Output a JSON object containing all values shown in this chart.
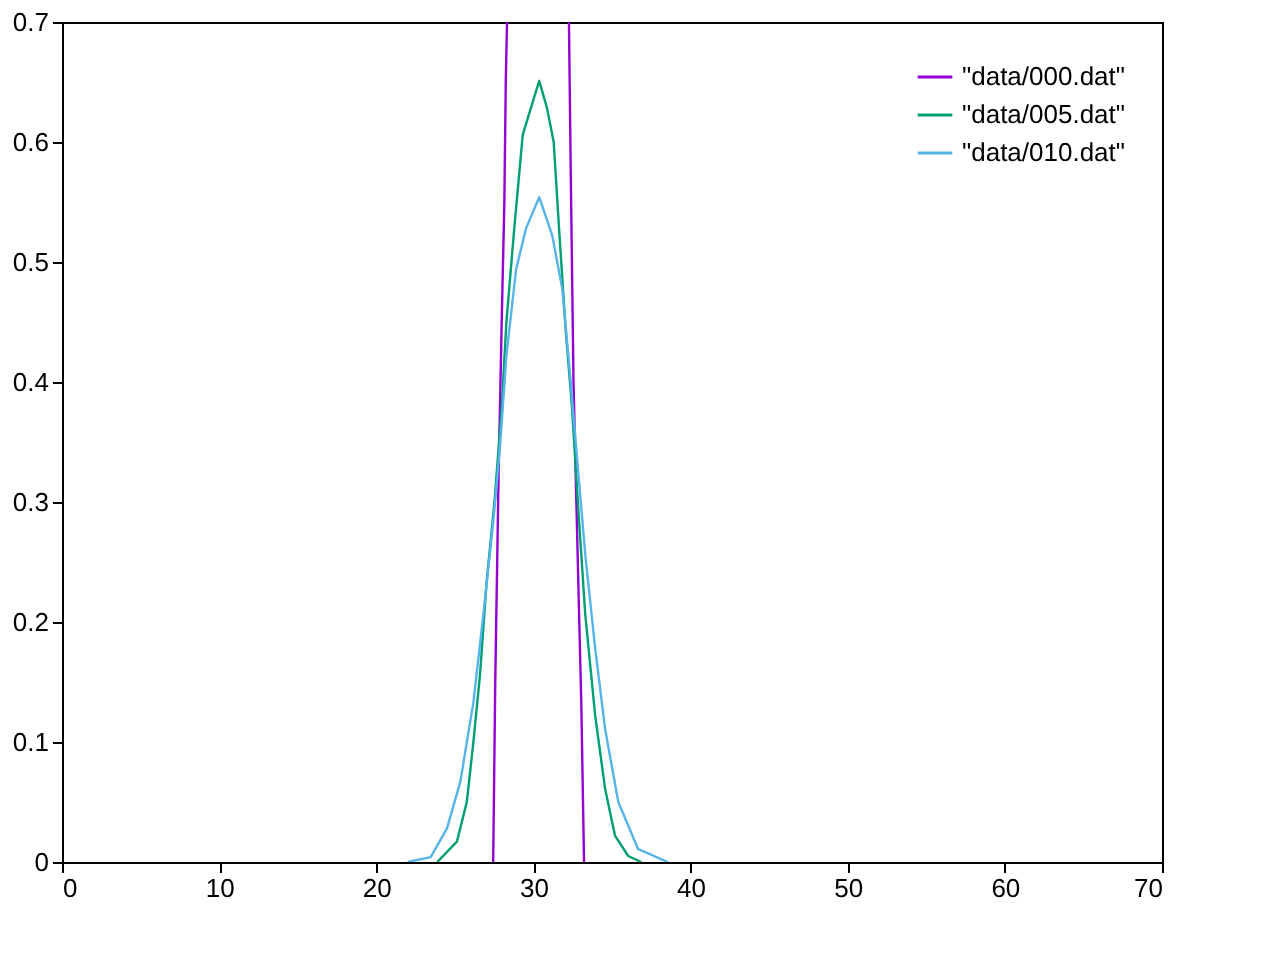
{
  "chart_data": {
    "type": "line",
    "xlim": [
      0,
      70
    ],
    "ylim": [
      0,
      0.7
    ],
    "xticks": [
      0,
      10,
      20,
      30,
      40,
      50,
      60,
      70
    ],
    "yticks": [
      0,
      0.1,
      0.2,
      0.3,
      0.4,
      0.5,
      0.6,
      0.7
    ],
    "grid": false,
    "legend": "top right",
    "line_style": "solid",
    "marker": "none",
    "series": [
      {
        "name": "\"data/000.dat\"",
        "color": "#9400d3",
        "x": [
          27.44,
          27.57,
          27.78,
          27.98,
          28.15,
          28.24,
          28.32,
          30.3,
          32.26,
          32.38,
          32.55,
          32.88,
          33.05,
          33.22
        ],
        "values": [
          0,
          0.15,
          0.32,
          0.45,
          0.55,
          0.65,
          0.7,
          null,
          0.7,
          0.57,
          0.4,
          0.22,
          0.13,
          0
        ]
      },
      {
        "name": "\"data/005.dat\"",
        "color": "#009e73",
        "x": [
          23.88,
          25.13,
          25.76,
          26.18,
          26.6,
          27.02,
          27.52,
          27.98,
          28.28,
          28.78,
          29.32,
          29.83,
          30.37,
          30.87,
          31.29,
          31.63,
          32.05,
          32.46,
          32.88,
          33.3,
          33.93,
          34.56,
          35.19,
          36.03,
          36.86
        ],
        "values": [
          0,
          0.017,
          0.05,
          0.1,
          0.156,
          0.233,
          0.3,
          0.378,
          0.45,
          0.528,
          0.606,
          0.628,
          0.651,
          0.628,
          0.6,
          0.528,
          0.444,
          0.378,
          0.289,
          0.206,
          0.122,
          0.061,
          0.022,
          0.005,
          0
        ]
      },
      {
        "name": "\"data/010.dat\"",
        "color": "#56b4e9",
        "x": [
          22.0,
          23.46,
          24.5,
          25.35,
          26.18,
          26.81,
          27.44,
          27.86,
          28.28,
          28.9,
          29.53,
          30.37,
          31.2,
          31.83,
          32.26,
          32.8,
          33.3,
          33.93,
          34.56,
          35.4,
          36.65,
          38.54
        ],
        "values": [
          0,
          0.004,
          0.028,
          0.067,
          0.133,
          0.206,
          0.283,
          0.344,
          0.422,
          0.494,
          0.528,
          0.554,
          0.522,
          0.478,
          0.417,
          0.333,
          0.256,
          0.178,
          0.111,
          0.05,
          0.011,
          0
        ]
      }
    ]
  }
}
